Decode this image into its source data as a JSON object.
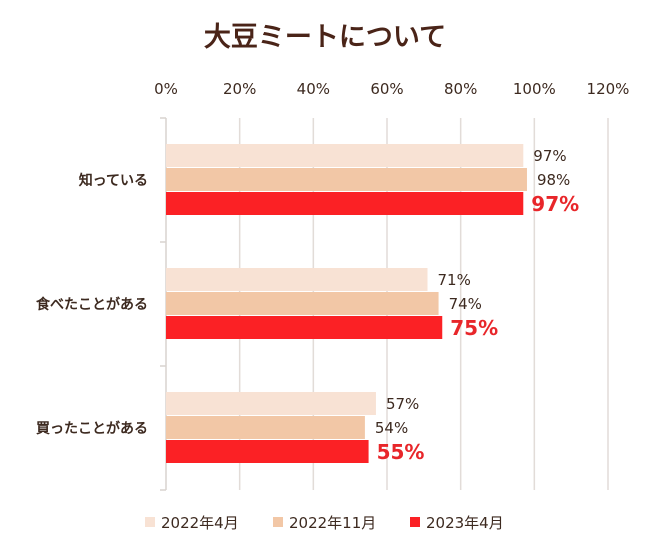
{
  "chart_data": {
    "type": "bar",
    "orientation": "horizontal",
    "title": "大豆ミートについて",
    "categories": [
      "知っている",
      "食べたことがある",
      "買ったことがある"
    ],
    "series": [
      {
        "name": "2022年4月",
        "values": [
          97,
          71,
          57
        ],
        "color": "#f8e2d4",
        "labels": [
          "97%",
          "71%",
          "57%"
        ]
      },
      {
        "name": "2022年11月",
        "values": [
          98,
          74,
          54
        ],
        "color": "#f2c7a6",
        "labels": [
          "98%",
          "74%",
          "54%"
        ]
      },
      {
        "name": "2023年4月",
        "values": [
          97,
          75,
          55
        ],
        "color": "#fb2125",
        "labels": [
          "97%",
          "75%",
          "55%"
        ],
        "highlight_label_color": "#e8262a"
      }
    ],
    "xlim": [
      0,
      120
    ],
    "xticks": [
      "0%",
      "20%",
      "40%",
      "60%",
      "80%",
      "100%",
      "120%"
    ],
    "xaxis_position": "top",
    "grid": true,
    "legend_position": "bottom"
  }
}
